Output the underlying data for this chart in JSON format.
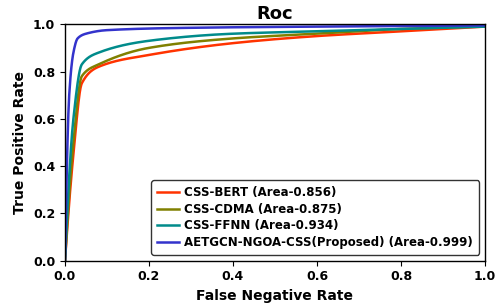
{
  "title": "Roc",
  "xlabel": "False Negative Rate",
  "ylabel": "True Positive Rate",
  "xlim": [
    0.0,
    1.0
  ],
  "ylim": [
    0.0,
    1.0
  ],
  "curves": [
    {
      "label": "CSS-BERT (Area-0.856)",
      "color": "#FF3300",
      "area": 0.856,
      "key_points": [
        [
          0.0,
          0.0
        ],
        [
          0.02,
          0.45
        ],
        [
          0.04,
          0.75
        ],
        [
          0.08,
          0.82
        ],
        [
          0.2,
          0.87
        ],
        [
          0.4,
          0.92
        ],
        [
          0.6,
          0.95
        ],
        [
          0.8,
          0.97
        ],
        [
          1.0,
          0.99
        ]
      ]
    },
    {
      "label": "CSS-CDMA (Area-0.875)",
      "color": "#808000",
      "area": 0.875,
      "key_points": [
        [
          0.0,
          0.0
        ],
        [
          0.02,
          0.5
        ],
        [
          0.04,
          0.78
        ],
        [
          0.08,
          0.83
        ],
        [
          0.2,
          0.9
        ],
        [
          0.4,
          0.94
        ],
        [
          0.6,
          0.96
        ],
        [
          0.8,
          0.98
        ],
        [
          1.0,
          0.99
        ]
      ]
    },
    {
      "label": "CSS-FFNN (Area-0.934)",
      "color": "#008B8B",
      "area": 0.934,
      "key_points": [
        [
          0.0,
          0.0
        ],
        [
          0.02,
          0.6
        ],
        [
          0.04,
          0.83
        ],
        [
          0.08,
          0.88
        ],
        [
          0.2,
          0.93
        ],
        [
          0.4,
          0.96
        ],
        [
          0.6,
          0.97
        ],
        [
          0.8,
          0.98
        ],
        [
          1.0,
          0.99
        ]
      ]
    },
    {
      "label": "AETGCN-NGOA-CSS(Proposed) (Area-0.999)",
      "color": "#3333CC",
      "area": 0.999,
      "key_points": [
        [
          0.0,
          0.0
        ],
        [
          0.01,
          0.7
        ],
        [
          0.02,
          0.88
        ],
        [
          0.03,
          0.94
        ],
        [
          0.05,
          0.96
        ],
        [
          0.1,
          0.975
        ],
        [
          0.3,
          0.985
        ],
        [
          0.6,
          0.99
        ],
        [
          1.0,
          0.995
        ]
      ]
    }
  ],
  "title_fontsize": 13,
  "label_fontsize": 10,
  "tick_fontsize": 9,
  "legend_fontsize": 8.5,
  "legend_loc": "lower right",
  "linewidth": 1.8,
  "background_color": "#ffffff",
  "xticks": [
    0.0,
    0.2,
    0.4,
    0.6,
    0.8,
    1.0
  ],
  "yticks": [
    0.0,
    0.2,
    0.4,
    0.6,
    0.8,
    1.0
  ]
}
